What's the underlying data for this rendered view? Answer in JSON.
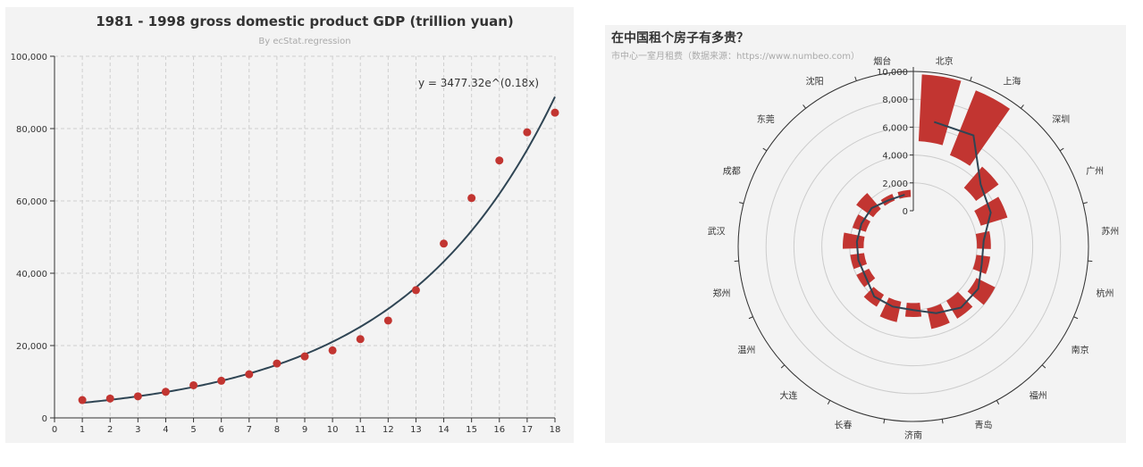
{
  "colors": {
    "bar": "#c23531",
    "line": "#2f4554",
    "panel_bg": "#f3f3f3"
  },
  "chart_data": [
    {
      "type": "scatter",
      "title": "1981 - 1998 gross domestic product GDP (trillion yuan)",
      "subtitle": "By ecStat.regression",
      "xlabel": "",
      "ylabel": "",
      "xlim": [
        0,
        18
      ],
      "ylim": [
        0,
        100000
      ],
      "x_ticks": [
        "0",
        "1",
        "2",
        "3",
        "4",
        "5",
        "6",
        "7",
        "8",
        "9",
        "10",
        "11",
        "12",
        "13",
        "14",
        "15",
        "16",
        "17",
        "18"
      ],
      "y_ticks": [
        "0",
        "20,000",
        "40,000",
        "60,000",
        "80,000",
        "100,000"
      ],
      "grid": true,
      "equation": "y = 3477.32e^(0.18x)",
      "regression": {
        "a": 3477.32,
        "b": 0.18,
        "type": "exponential"
      },
      "points": [
        {
          "x": 1,
          "y": 4935
        },
        {
          "x": 2,
          "y": 5352
        },
        {
          "x": 3,
          "y": 5962
        },
        {
          "x": 4,
          "y": 7208
        },
        {
          "x": 5,
          "y": 9016
        },
        {
          "x": 6,
          "y": 10275
        },
        {
          "x": 7,
          "y": 12059
        },
        {
          "x": 8,
          "y": 15043
        },
        {
          "x": 9,
          "y": 16992
        },
        {
          "x": 10,
          "y": 18668
        },
        {
          "x": 11,
          "y": 21782
        },
        {
          "x": 12,
          "y": 26924
        },
        {
          "x": 13,
          "y": 35334
        },
        {
          "x": 14,
          "y": 48198
        },
        {
          "x": 15,
          "y": 60794
        },
        {
          "x": 16,
          "y": 71177
        },
        {
          "x": 17,
          "y": 78973
        },
        {
          "x": 18,
          "y": 84402
        }
      ]
    },
    {
      "type": "bar",
      "subtype": "polar-radial",
      "title": "在中国租个房子有多贵？",
      "subtitle": "市中心一室月租费（数据来源：https://www.numbeo.com）",
      "radius_ticks": [
        "0",
        "2,000",
        "4,000",
        "6,000",
        "8,000",
        "10,000"
      ],
      "rlim": [
        0,
        10000
      ],
      "categories": [
        "北京",
        "上海",
        "深圳",
        "广州",
        "苏州",
        "杭州",
        "南京",
        "福州",
        "青岛",
        "济南",
        "长春",
        "大连",
        "温州",
        "郑州",
        "武汉",
        "成都",
        "东莞",
        "沈阳",
        "烟台"
      ],
      "series": [
        {
          "type": "bar",
          "ranges": [
            [
              5000,
              9800
            ],
            [
              4500,
              9500
            ],
            [
              3000,
              5000
            ],
            [
              2500,
              4500
            ],
            [
              2000,
              3000
            ],
            [
              2000,
              3000
            ],
            [
              2500,
              4000
            ],
            [
              2000,
              3500
            ],
            [
              2000,
              3500
            ],
            [
              1500,
              2500
            ],
            [
              1500,
              3000
            ],
            [
              1500,
              2500
            ],
            [
              1000,
              2000
            ],
            [
              1000,
              2000
            ],
            [
              1000,
              2500
            ],
            [
              1000,
              2000
            ],
            [
              1000,
              2500
            ],
            [
              1000,
              1500
            ],
            [
              1000,
              1500
            ]
          ]
        },
        {
          "type": "line",
          "values": [
            6500,
            6500,
            4000,
            3500,
            2500,
            2500,
            3000,
            3000,
            2500,
            2000,
            2000,
            2000,
            1500,
            1500,
            1500,
            1500,
            1500,
            1200,
            1200
          ]
        }
      ]
    }
  ]
}
